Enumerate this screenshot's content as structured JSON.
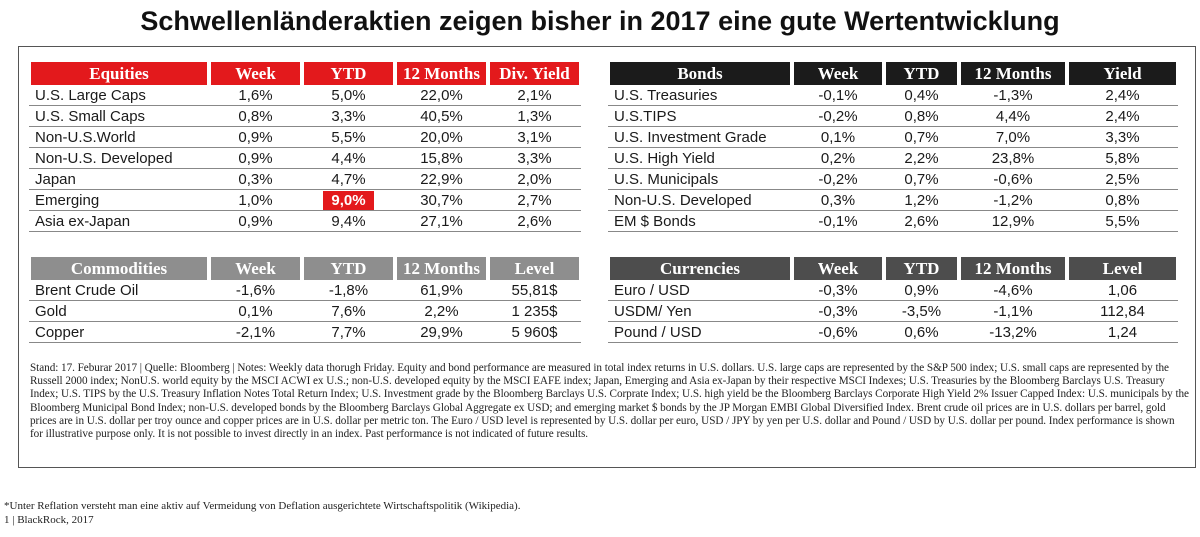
{
  "title": "Schwellenländeraktien zeigen bisher in 2017 eine gute Wertentwicklung",
  "equities": {
    "headers": [
      "Equities",
      "Week",
      "YTD",
      "12 Months",
      "Div. Yield"
    ],
    "rows": [
      [
        "U.S. Large Caps",
        "1,6%",
        "5,0%",
        "22,0%",
        "2,1%"
      ],
      [
        "U.S. Small Caps",
        "0,8%",
        "3,3%",
        "40,5%",
        "1,3%"
      ],
      [
        "Non-U.S.World",
        "0,9%",
        "5,5%",
        "20,0%",
        "3,1%"
      ],
      [
        "Non-U.S. Developed",
        "0,9%",
        "4,4%",
        "15,8%",
        "3,3%"
      ],
      [
        "Japan",
        "0,3%",
        "4,7%",
        "22,9%",
        "2,0%"
      ],
      [
        "Emerging",
        "1,0%",
        "9,0%",
        "30,7%",
        "2,7%"
      ],
      [
        "Asia ex-Japan",
        "0,9%",
        "9,4%",
        "27,1%",
        "2,6%"
      ]
    ]
  },
  "bonds": {
    "headers": [
      "Bonds",
      "Week",
      "YTD",
      "12 Months",
      "Yield"
    ],
    "rows": [
      [
        "U.S. Treasuries",
        "-0,1%",
        "0,4%",
        "-1,3%",
        "2,4%"
      ],
      [
        "U.S.TIPS",
        "-0,2%",
        "0,8%",
        "4,4%",
        "2,4%"
      ],
      [
        "U.S. Investment Grade",
        "0,1%",
        "0,7%",
        "7,0%",
        "3,3%"
      ],
      [
        "U.S. High Yield",
        "0,2%",
        "2,2%",
        "23,8%",
        "5,8%"
      ],
      [
        "U.S. Municipals",
        "-0,2%",
        "0,7%",
        "-0,6%",
        "2,5%"
      ],
      [
        "Non-U.S. Developed",
        "0,3%",
        "1,2%",
        "-1,2%",
        "0,8%"
      ],
      [
        "EM $ Bonds",
        "-0,1%",
        "2,6%",
        "12,9%",
        "5,5%"
      ]
    ]
  },
  "commodities": {
    "headers": [
      "Commodities",
      "Week",
      "YTD",
      "12 Months",
      "Level"
    ],
    "rows": [
      [
        "Brent Crude Oil",
        "-1,6%",
        "-1,8%",
        "61,9%",
        "55,81$"
      ],
      [
        "Gold",
        "0,1%",
        "7,6%",
        "2,2%",
        "1 235$"
      ],
      [
        "Copper",
        "-2,1%",
        "7,7%",
        "29,9%",
        "5 960$"
      ]
    ]
  },
  "currencies": {
    "headers": [
      "Currencies",
      "Week",
      "YTD",
      "12 Months",
      "Level"
    ],
    "rows": [
      [
        "Euro / USD",
        "-0,3%",
        "0,9%",
        "-4,6%",
        "1,06"
      ],
      [
        "USDM/ Yen",
        "-0,3%",
        "-3,5%",
        "-1,1%",
        "112,84"
      ],
      [
        "Pound / USD",
        "-0,6%",
        "0,6%",
        "-13,2%",
        "1,24"
      ]
    ]
  },
  "notes": "Stand: 17. Feburar 2017 | Quelle: Bloomberg | Notes: Weekly data thorugh Friday. Equity and bond performance are measured in total index returns in U.S. dollars. U.S. large caps are represented by the S&P 500 index; U.S. small caps are represented by the Russell 2000 index; NonU.S. world equity by the MSCI ACWI ex U.S.; non-U.S. developed equity by the MSCI EAFE index; Japan, Emerging and Asia ex-Japan by their respective MSCI Indexes; U.S. Treasuries by the Bloomberg Barclays U.S. Treasury Index; U.S. TIPS by the U.S. Treasury Inflation Notes Total Return Index; U.S. Investment grade by the Bloomberg Barclays U.S. Corprate Index; U.S. high yield be the Bloomberg Barclays Corporate High Yield 2% Issuer Capped Index: U.S. municipals by the Bloomberg Municipal Bond Index; non-U.S. developed bonds by the Bloomberg Barclays Global Aggregate ex USD; and emerging market $ bonds by the JP Morgan EMBI Global Diversified Index. Brent crude oil prices are in U.S. dollars per barrel, gold prices are in U.S. dollar per troy ounce and copper prices are in U.S. dollar per metric ton. The Euro / USD level is represented by U.S. dollar per euro, USD / JPY by yen per U.S. dollar and Pound / USD by U.S. dollar per pound. Index performance is shown for illustrative purpose only. It is not possible to invest directly in an index. Past performance is not indicated of future results.",
  "footnote": {
    "line1": "*Unter Reflation versteht man eine aktiv auf Vermeidung von Deflation ausgerichtete Wirtschaftspolitik (Wikipedia).",
    "line2": "1 | BlackRock, 2017"
  },
  "colors": {
    "equities_header": "#e3191c",
    "bonds_header": "#1b1b1b",
    "commodities_header": "#8e8e8e",
    "currencies_header": "#4d4d4d",
    "highlight": "#e3191c"
  },
  "highlighted_cell": {
    "table": "equities",
    "row": 5,
    "col": 2
  }
}
